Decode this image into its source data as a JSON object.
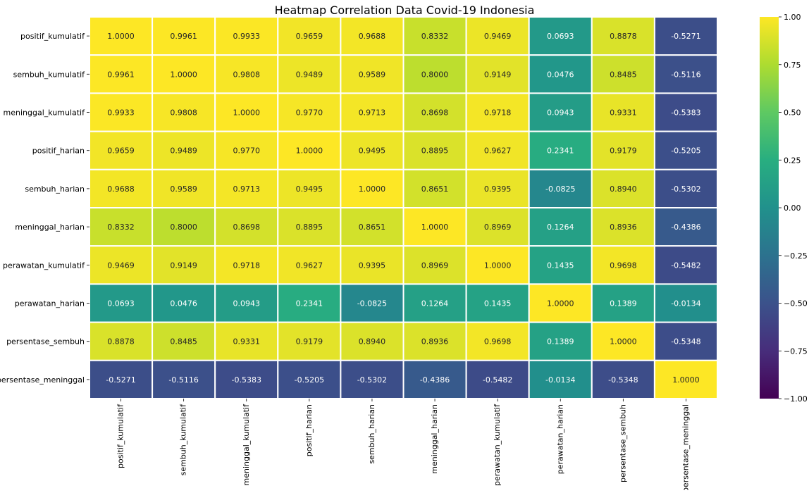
{
  "chart_data": {
    "type": "heatmap",
    "title": "Heatmap Correlation Data Covid-19 Indonesia",
    "row_labels": [
      "positif_kumulatif",
      "sembuh_kumulatif",
      "meninggal_kumulatif",
      "positif_harian",
      "sembuh_harian",
      "meninggal_harian",
      "perawatan_kumulatif",
      "perawatan_harian",
      "persentase_sembuh",
      "persentase_meninggal"
    ],
    "col_labels": [
      "positif_kumulatif",
      "sembuh_kumulatif",
      "meninggal_kumulatif",
      "positif_harian",
      "sembuh_harian",
      "meninggal_harian",
      "perawatan_kumulatif",
      "perawatan_harian",
      "persentase_sembuh",
      "persentase_meninggal"
    ],
    "values": [
      [
        1.0,
        0.9961,
        0.9933,
        0.9659,
        0.9688,
        0.8332,
        0.9469,
        0.0693,
        0.8878,
        -0.5271
      ],
      [
        0.9961,
        1.0,
        0.9808,
        0.9489,
        0.9589,
        0.8,
        0.9149,
        0.0476,
        0.8485,
        -0.5116
      ],
      [
        0.9933,
        0.9808,
        1.0,
        0.977,
        0.9713,
        0.8698,
        0.9718,
        0.0943,
        0.9331,
        -0.5383
      ],
      [
        0.9659,
        0.9489,
        0.977,
        1.0,
        0.9495,
        0.8895,
        0.9627,
        0.2341,
        0.9179,
        -0.5205
      ],
      [
        0.9688,
        0.9589,
        0.9713,
        0.9495,
        1.0,
        0.8651,
        0.9395,
        -0.0825,
        0.894,
        -0.5302
      ],
      [
        0.8332,
        0.8,
        0.8698,
        0.8895,
        0.8651,
        1.0,
        0.8969,
        0.1264,
        0.8936,
        -0.4386
      ],
      [
        0.9469,
        0.9149,
        0.9718,
        0.9627,
        0.9395,
        0.8969,
        1.0,
        0.1435,
        0.9698,
        -0.5482
      ],
      [
        0.0693,
        0.0476,
        0.0943,
        0.2341,
        -0.0825,
        0.1264,
        0.1435,
        1.0,
        0.1389,
        -0.0134
      ],
      [
        0.8878,
        0.8485,
        0.9331,
        0.9179,
        0.894,
        0.8936,
        0.9698,
        0.1389,
        1.0,
        -0.5348
      ],
      [
        -0.5271,
        -0.5116,
        -0.5383,
        -0.5205,
        -0.5302,
        -0.4386,
        -0.5482,
        -0.0134,
        -0.5348,
        1.0
      ]
    ],
    "value_format": "4 decimals",
    "vmin": -1.0,
    "vmax": 1.0,
    "colormap": "viridis",
    "colorbar_ticks": [
      "1.00",
      "0.75",
      "0.50",
      "0.25",
      "0.00",
      "−0.25",
      "−0.50",
      "−0.75",
      "−1.00"
    ],
    "colorbar_tick_values": [
      1.0,
      0.75,
      0.5,
      0.25,
      0.0,
      -0.25,
      -0.5,
      -0.75,
      -1.0
    ],
    "cell_border_color": "#ffffff",
    "legend": "colorbar-right"
  }
}
